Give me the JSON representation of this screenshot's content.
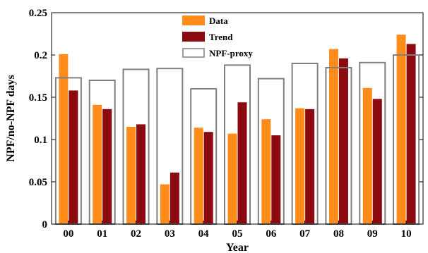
{
  "chart_data": {
    "type": "bar",
    "categories": [
      "00",
      "01",
      "02",
      "03",
      "04",
      "05",
      "06",
      "07",
      "08",
      "09",
      "10"
    ],
    "series": [
      {
        "name": "Data",
        "color": "#FF8C1A",
        "values": [
          0.201,
          0.141,
          0.115,
          0.047,
          0.114,
          0.107,
          0.124,
          0.137,
          0.207,
          0.161,
          0.224
        ]
      },
      {
        "name": "Trend",
        "color": "#8B0A10",
        "values": [
          0.158,
          0.136,
          0.118,
          0.061,
          0.109,
          0.144,
          0.105,
          0.136,
          0.196,
          0.148,
          0.213
        ]
      },
      {
        "name": "NPF-proxy",
        "color": "#808080",
        "values": [
          0.173,
          0.17,
          0.183,
          0.184,
          0.16,
          0.188,
          0.172,
          0.19,
          0.185,
          0.191,
          0.2
        ]
      }
    ],
    "xlabel": "Year",
    "ylabel": "NPF/no-NPF days",
    "ylim": [
      0,
      0.25
    ],
    "yticks": [
      "0",
      "0.05",
      "0.1",
      "0.15",
      "0.2",
      "0.25"
    ],
    "grid": false,
    "legend_position": "top-center"
  }
}
